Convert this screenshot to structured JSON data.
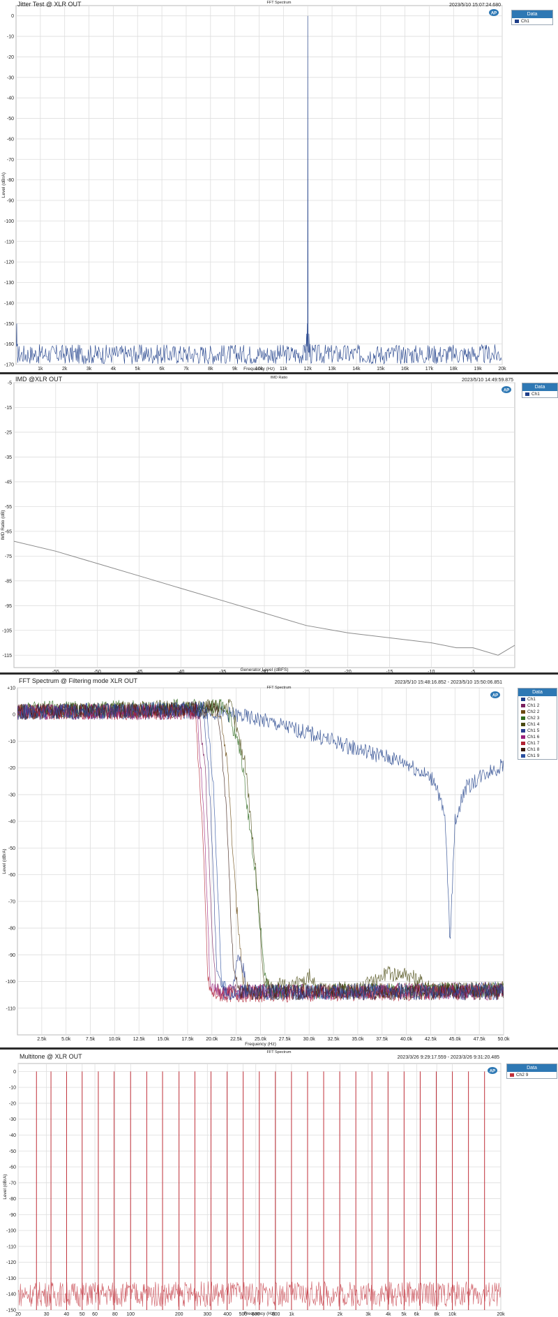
{
  "chart_data": [
    {
      "type": "line",
      "title": "Jitter Test @ XLR OUT",
      "subtitle": "FFT Spectrum",
      "timestamp": "2023/5/10 15:07:24.680",
      "xlabel": "Frequency (Hz)",
      "ylabel": "Level (dBrA)",
      "xlim": [
        0,
        20000
      ],
      "ylim": [
        -170,
        5
      ],
      "x_scale": "linear",
      "x_ticks": [
        1000,
        2000,
        3000,
        4000,
        5000,
        6000,
        7000,
        8000,
        9000,
        10000,
        11000,
        12000,
        13000,
        14000,
        15000,
        16000,
        17000,
        18000,
        19000,
        20000
      ],
      "x_tick_labels": [
        "1k",
        "2k",
        "3k",
        "4k",
        "5k",
        "6k",
        "7k",
        "8k",
        "9k",
        "10k",
        "11k",
        "12k",
        "13k",
        "14k",
        "15k",
        "16k",
        "17k",
        "18k",
        "19k",
        "20k"
      ],
      "y_ticks": [
        0,
        -10,
        -20,
        -30,
        -40,
        -50,
        -60,
        -70,
        -80,
        -90,
        -100,
        -110,
        -120,
        -130,
        -140,
        -150,
        -160,
        -170
      ],
      "y_tick_labels": [
        "0",
        "-10",
        "-20",
        "-30",
        "-40",
        "-50",
        "-60",
        "-70",
        "-80",
        "-90",
        "-100",
        "-110",
        "-120",
        "-130",
        "-140",
        "-150",
        "-160",
        "-170"
      ],
      "grid": true,
      "legend": {
        "title": "Data",
        "position": "right"
      },
      "series": [
        {
          "name": "Ch1",
          "color": "#1f3f8a",
          "noise_floor": -165,
          "noise_range": [
            -168,
            -162
          ],
          "points": [
            [
              20,
              -158
            ],
            [
              30,
              -150
            ],
            [
              60,
              -160
            ],
            [
              11900,
              -160
            ],
            [
              11950,
              -155
            ],
            [
              11985,
              -150
            ],
            [
              12000,
              0
            ],
            [
              12015,
              -150
            ],
            [
              12050,
              -155
            ],
            [
              12100,
              -160
            ]
          ]
        }
      ]
    },
    {
      "type": "line",
      "title": "IMD @XLR OUT",
      "subtitle": "IMD Ratio",
      "timestamp": "2023/5/10 14:49:59.875",
      "xlabel": "Generator Level (dBFS)",
      "ylabel": "IMD Ratio (dB)",
      "xlim": [
        -60,
        0
      ],
      "ylim": [
        -120,
        -5
      ],
      "x_ticks": [
        -55,
        -50,
        -45,
        -40,
        -35,
        -30,
        -25,
        -20,
        -15,
        -10,
        -5
      ],
      "x_tick_labels": [
        "-55",
        "-50",
        "-45",
        "-40",
        "-35",
        "-30",
        "-25",
        "-20",
        "-15",
        "-10",
        "-5"
      ],
      "y_ticks": [
        -5,
        -15,
        -25,
        -35,
        -45,
        -55,
        -65,
        -75,
        -85,
        -95,
        -105,
        -115
      ],
      "y_tick_labels": [
        "-5",
        "-15",
        "-25",
        "-35",
        "-45",
        "-55",
        "-65",
        "-75",
        "-85",
        "-95",
        "-105",
        "-115"
      ],
      "grid": true,
      "legend": {
        "title": "Data",
        "position": "right"
      },
      "series": [
        {
          "name": "Ch1",
          "color": "#8a8a8a",
          "points": [
            [
              -60,
              -69
            ],
            [
              -55,
              -73
            ],
            [
              -50,
              -78
            ],
            [
              -45,
              -83
            ],
            [
              -40,
              -88
            ],
            [
              -35,
              -93
            ],
            [
              -30,
              -98
            ],
            [
              -25,
              -103
            ],
            [
              -20,
              -106
            ],
            [
              -15,
              -108
            ],
            [
              -10,
              -110
            ],
            [
              -7,
              -112
            ],
            [
              -5,
              -112
            ],
            [
              -2,
              -115
            ],
            [
              0,
              -111
            ]
          ]
        }
      ]
    },
    {
      "type": "line",
      "title": "FFT Spectrum @ Filtering mode XLR OUT",
      "subtitle": "FFT Spectrum",
      "timestamp": "2023/5/10 15:48:16.852 - 2023/5/10 15:50:06.851",
      "xlabel": "Frequency (Hz)",
      "ylabel": "Level (dBrA)",
      "xlim": [
        0,
        50000
      ],
      "ylim": [
        -120,
        10
      ],
      "x_ticks": [
        2500,
        5000,
        7500,
        10000,
        12500,
        15000,
        17500,
        20000,
        22500,
        25000,
        27500,
        30000,
        32500,
        35000,
        37500,
        40000,
        42500,
        45000,
        47500,
        50000
      ],
      "x_tick_labels": [
        "2.5k",
        "5.0k",
        "7.5k",
        "10.0k",
        "12.5k",
        "15.0k",
        "17.5k",
        "20.0k",
        "22.5k",
        "25.0k",
        "27.5k",
        "30.0k",
        "32.5k",
        "35.0k",
        "37.5k",
        "40.0k",
        "42.5k",
        "45.0k",
        "47.5k",
        "50.0k"
      ],
      "y_ticks": [
        10,
        0,
        -10,
        -20,
        -30,
        -40,
        -50,
        -60,
        -70,
        -80,
        -90,
        -100,
        -110
      ],
      "y_tick_labels": [
        "+10",
        "0",
        "-10",
        "-20",
        "-30",
        "-40",
        "-50",
        "-60",
        "-70",
        "-80",
        "-90",
        "-100",
        "-110"
      ],
      "grid": true,
      "legend": {
        "title": "Data",
        "position": "right"
      },
      "series": [
        {
          "name": "Ch1",
          "color": "#1f3f8a",
          "points": [
            [
              0,
              1
            ],
            [
              20000,
              1
            ],
            [
              22000,
              0
            ],
            [
              25000,
              -2
            ],
            [
              30000,
              -7
            ],
            [
              35000,
              -13
            ],
            [
              40000,
              -18
            ],
            [
              43000,
              -25
            ],
            [
              44000,
              -40
            ],
            [
              44500,
              -85
            ],
            [
              45000,
              -40
            ],
            [
              46000,
              -28
            ],
            [
              48000,
              -22
            ],
            [
              50000,
              -19
            ]
          ]
        },
        {
          "name": "Ch1 2",
          "color": "#7a1f5e",
          "points": [
            [
              0,
              1
            ],
            [
              18700,
              1
            ],
            [
              19300,
              -20
            ],
            [
              20000,
              -80
            ],
            [
              20400,
              -103
            ],
            [
              21000,
              -104
            ],
            [
              50000,
              -103
            ]
          ]
        },
        {
          "name": "Ch2 2",
          "color": "#6b4a12",
          "points": [
            [
              0,
              1
            ],
            [
              20800,
              2
            ],
            [
              21500,
              -15
            ],
            [
              22500,
              -70
            ],
            [
              23200,
              -100
            ],
            [
              24000,
              -104
            ],
            [
              50000,
              -103
            ]
          ]
        },
        {
          "name": "Ch2 3",
          "color": "#2f6b1f",
          "points": [
            [
              0,
              2
            ],
            [
              21500,
              3
            ],
            [
              23000,
              -15
            ],
            [
              24500,
              -60
            ],
            [
              25500,
              -100
            ],
            [
              26000,
              -104
            ],
            [
              50000,
              -103
            ]
          ]
        },
        {
          "name": "Ch1 4",
          "color": "#4a4a12",
          "points": [
            [
              0,
              1
            ],
            [
              22000,
              3
            ],
            [
              23500,
              -20
            ],
            [
              24800,
              -70
            ],
            [
              25300,
              -100
            ],
            [
              26500,
              -103
            ],
            [
              27000,
              -100
            ],
            [
              28000,
              -103
            ],
            [
              30000,
              -98
            ],
            [
              31000,
              -103
            ],
            [
              35000,
              -103
            ],
            [
              38000,
              -97
            ],
            [
              40000,
              -97
            ],
            [
              43000,
              -103
            ],
            [
              50000,
              -103
            ]
          ]
        },
        {
          "name": "Ch1 5",
          "color": "#2a3f8f",
          "points": [
            [
              0,
              1
            ],
            [
              19200,
              2
            ],
            [
              19800,
              -30
            ],
            [
              20500,
              -95
            ],
            [
              21000,
              -104
            ],
            [
              22000,
              -104
            ],
            [
              22800,
              -90
            ],
            [
              23200,
              -95
            ],
            [
              23600,
              -104
            ],
            [
              50000,
              -103
            ]
          ]
        },
        {
          "name": "Ch1 6",
          "color": "#9a1f7a",
          "points": [
            [
              0,
              1
            ],
            [
              18500,
              1
            ],
            [
              19200,
              -40
            ],
            [
              19800,
              -100
            ],
            [
              20300,
              -104
            ],
            [
              50000,
              -104
            ]
          ]
        },
        {
          "name": "Ch1 7",
          "color": "#b22233",
          "points": [
            [
              0,
              1
            ],
            [
              18300,
              1
            ],
            [
              19000,
              -40
            ],
            [
              19600,
              -100
            ],
            [
              20000,
              -105
            ],
            [
              50000,
              -104
            ]
          ]
        },
        {
          "name": "Ch1 8",
          "color": "#3a1a10",
          "points": [
            [
              0,
              1
            ],
            [
              20600,
              2
            ],
            [
              21400,
              -30
            ],
            [
              22200,
              -95
            ],
            [
              22800,
              -104
            ],
            [
              50000,
              -104
            ]
          ]
        },
        {
          "name": "Ch1 9",
          "color": "#2a4f9f",
          "points": [
            [
              0,
              1
            ],
            [
              19500,
              2
            ],
            [
              20200,
              -30
            ],
            [
              21000,
              -100
            ],
            [
              21500,
              -104
            ],
            [
              50000,
              -104
            ]
          ]
        }
      ]
    },
    {
      "type": "line",
      "title": "Multitone @ XLR OUT",
      "subtitle": "FFT Spectrum",
      "timestamp": "2023/3/26 9:29:17.559 - 2023/3/26 9:31:20.485",
      "xlabel": "Frequency (Hz)",
      "ylabel": "Level (dBrA)",
      "xlim": [
        20,
        20000
      ],
      "ylim": [
        -150,
        5
      ],
      "x_scale": "log",
      "x_ticks": [
        20,
        30,
        40,
        50,
        60,
        80,
        100,
        200,
        300,
        400,
        500,
        600,
        800,
        1000,
        2000,
        3000,
        4000,
        5000,
        6000,
        8000,
        10000,
        20000
      ],
      "x_tick_labels": [
        "20",
        "30",
        "40",
        "50",
        "60",
        "80",
        "100",
        "200",
        "300",
        "400",
        "500",
        "600",
        "800",
        "1k",
        "2k",
        "3k",
        "4k",
        "5k",
        "6k",
        "8k",
        "10k",
        "20k"
      ],
      "y_ticks": [
        0,
        -10,
        -20,
        -30,
        -40,
        -50,
        -60,
        -70,
        -80,
        -90,
        -100,
        -110,
        -120,
        -130,
        -140,
        -150
      ],
      "y_tick_labels": [
        "0",
        "-10",
        "-20",
        "-30",
        "-40",
        "-50",
        "-60",
        "-70",
        "-80",
        "-90",
        "-100",
        "-110",
        "-120",
        "-130",
        "-140",
        "-150"
      ],
      "grid": true,
      "legend": {
        "title": "Data",
        "position": "right"
      },
      "series": [
        {
          "name": "Ch2 9",
          "color": "#c0303a",
          "tone_level": 0,
          "floor_range": [
            -148,
            -132
          ],
          "tones": [
            26,
            32,
            40,
            50,
            63,
            79,
            100,
            126,
            158,
            200,
            251,
            316,
            398,
            501,
            631,
            794,
            1000,
            1259,
            1585,
            1995,
            2512,
            3162,
            3981,
            5012,
            6310,
            7943,
            10000,
            12589,
            15849
          ]
        }
      ]
    }
  ]
}
